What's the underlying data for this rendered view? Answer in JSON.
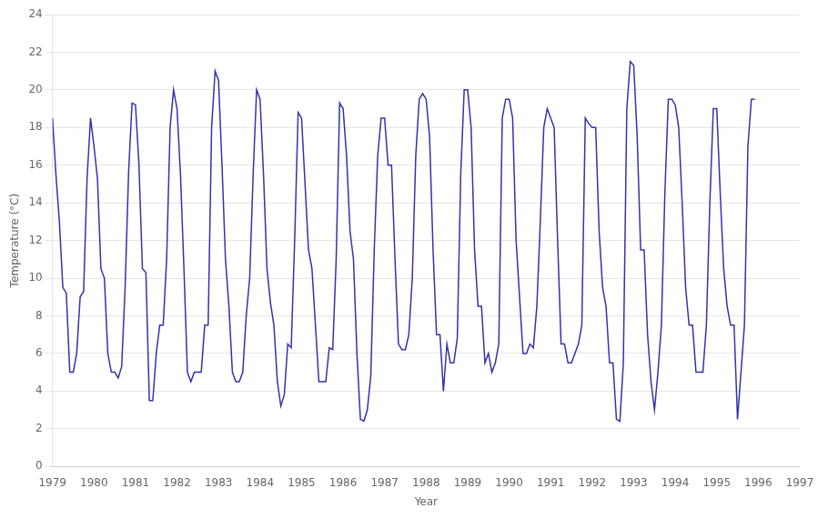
{
  "chart_data": {
    "type": "line",
    "xlabel": "Year",
    "ylabel": "Temperature (°C)",
    "xlim": [
      1979,
      1997
    ],
    "ylim": [
      0,
      24
    ],
    "xticks": [
      1979,
      1980,
      1981,
      1982,
      1983,
      1984,
      1985,
      1986,
      1987,
      1988,
      1989,
      1990,
      1991,
      1992,
      1993,
      1994,
      1995,
      1996,
      1997
    ],
    "yticks": [
      0,
      2,
      4,
      6,
      8,
      10,
      12,
      14,
      16,
      18,
      20,
      22,
      24
    ],
    "grid": "y",
    "color": "#3333aa",
    "x": [
      1979,
      1979.0833333333333,
      1979.1666666666667,
      1979.25,
      1979.3333333333333,
      1979.4166666666667,
      1979.5,
      1979.5833333333333,
      1979.6666666666667,
      1979.75,
      1979.8333333333333,
      1979.9166666666667,
      1980,
      1980.0833333333333,
      1980.1666666666667,
      1980.25,
      1980.3333333333333,
      1980.4166666666667,
      1980.5,
      1980.5833333333333,
      1980.6666666666667,
      1980.75,
      1980.8333333333333,
      1980.9166666666667,
      1981,
      1981.0833333333333,
      1981.1666666666667,
      1981.25,
      1981.3333333333333,
      1981.4166666666667,
      1981.5,
      1981.5833333333333,
      1981.6666666666667,
      1981.75,
      1981.8333333333333,
      1981.9166666666667,
      1982,
      1982.0833333333333,
      1982.1666666666667,
      1982.25,
      1982.3333333333333,
      1982.4166666666667,
      1982.5,
      1982.5833333333333,
      1982.6666666666667,
      1982.75,
      1982.8333333333333,
      1982.9166666666667,
      1983,
      1983.0833333333333,
      1983.1666666666667,
      1983.25,
      1983.3333333333333,
      1983.4166666666667,
      1983.5,
      1983.5833333333333,
      1983.6666666666667,
      1983.75,
      1983.8333333333333,
      1983.9166666666667,
      1984,
      1984.0833333333333,
      1984.1666666666667,
      1984.25,
      1984.3333333333333,
      1984.4166666666667,
      1984.5,
      1984.5833333333333,
      1984.6666666666667,
      1984.75,
      1984.8333333333333,
      1984.9166666666667,
      1985,
      1985.0833333333333,
      1985.1666666666667,
      1985.25,
      1985.3333333333333,
      1985.4166666666667,
      1985.5,
      1985.5833333333333,
      1985.6666666666667,
      1985.75,
      1985.8333333333333,
      1985.9166666666667,
      1986,
      1986.0833333333333,
      1986.1666666666667,
      1986.25,
      1986.3333333333333,
      1986.4166666666667,
      1986.5,
      1986.5833333333333,
      1986.6666666666667,
      1986.75,
      1986.8333333333333,
      1986.9166666666667,
      1987,
      1987.0833333333333,
      1987.1666666666667,
      1987.25,
      1987.3333333333333,
      1987.4166666666667,
      1987.5,
      1987.5833333333333,
      1987.6666666666667,
      1987.75,
      1987.8333333333333,
      1987.9166666666667,
      1988,
      1988.0833333333333,
      1988.1666666666667,
      1988.25,
      1988.3333333333333,
      1988.4166666666667,
      1988.5,
      1988.5833333333333,
      1988.6666666666667,
      1988.75,
      1988.8333333333333,
      1988.9166666666667,
      1989,
      1989.0833333333333,
      1989.1666666666667,
      1989.25,
      1989.3333333333333,
      1989.4166666666667,
      1989.5,
      1989.5833333333333,
      1989.6666666666667,
      1989.75,
      1989.8333333333333,
      1989.9166666666667,
      1990,
      1990.0833333333333,
      1990.1666666666667,
      1990.25,
      1990.3333333333333,
      1990.4166666666667,
      1990.5,
      1990.5833333333333,
      1990.6666666666667,
      1990.75,
      1990.8333333333333,
      1990.9166666666667,
      1991,
      1991.0833333333333,
      1991.1666666666667,
      1991.25,
      1991.3333333333333,
      1991.4166666666667,
      1991.5,
      1991.5833333333333,
      1991.6666666666667,
      1991.75,
      1991.8333333333333,
      1991.9166666666667,
      1992,
      1992.0833333333333,
      1992.1666666666667,
      1992.25,
      1992.3333333333333,
      1992.4166666666667,
      1992.5,
      1992.5833333333333,
      1992.6666666666667,
      1992.75,
      1992.8333333333333,
      1992.9166666666667,
      1993,
      1993.0833333333333,
      1993.1666666666667,
      1993.25,
      1993.3333333333333,
      1993.4166666666667,
      1993.5,
      1993.5833333333333,
      1993.6666666666667,
      1993.75,
      1993.8333333333333,
      1993.9166666666667,
      1994,
      1994.0833333333333,
      1994.1666666666667,
      1994.25,
      1994.3333333333333,
      1994.4166666666667,
      1994.5,
      1994.5833333333333,
      1994.6666666666667,
      1994.75,
      1994.8333333333333,
      1994.9166666666667,
      1995,
      1995.0833333333333,
      1995.1666666666667,
      1995.25,
      1995.3333333333333,
      1995.4166666666667,
      1995.5,
      1995.5833333333333,
      1995.6666666666667,
      1995.75,
      1995.8333333333333,
      1995.9166666666667
    ],
    "values": [
      18.5,
      15.5,
      13.0,
      9.5,
      9.2,
      5.0,
      5.0,
      6.0,
      9.0,
      9.3,
      15.3,
      18.5,
      17.0,
      15.3,
      10.5,
      10.0,
      6.0,
      5.0,
      5.0,
      4.7,
      5.3,
      9.5,
      15.6,
      19.3,
      19.2,
      16.0,
      10.5,
      10.3,
      3.5,
      3.5,
      6.0,
      7.5,
      7.5,
      11.0,
      18.0,
      20.0,
      19.0,
      15.5,
      10.5,
      5.0,
      4.5,
      5.0,
      5.0,
      5.0,
      7.5,
      7.5,
      18.0,
      21.0,
      20.5,
      16.0,
      11.0,
      8.5,
      5.0,
      4.5,
      4.5,
      5.0,
      8.0,
      10.0,
      15.5,
      20.0,
      19.5,
      15.5,
      10.5,
      8.7,
      7.5,
      4.5,
      3.2,
      3.8,
      6.5,
      6.3,
      12.0,
      18.8,
      18.5,
      15.0,
      11.5,
      10.5,
      7.5,
      4.5,
      4.5,
      4.5,
      6.3,
      6.2,
      11.0,
      19.3,
      19.0,
      16.5,
      12.5,
      11.0,
      6.0,
      2.5,
      2.4,
      3.0,
      4.8,
      11.5,
      16.5,
      18.5,
      18.5,
      16.0,
      16.0,
      11.0,
      6.5,
      6.2,
      6.2,
      7.0,
      10.0,
      16.5,
      19.5,
      19.8,
      19.5,
      17.5,
      11.5,
      7.0,
      7.0,
      4.0,
      6.5,
      5.5,
      5.5,
      6.8,
      15.5,
      20.0,
      20.0,
      18.0,
      11.5,
      8.5,
      8.5,
      5.5,
      6.0,
      5.0,
      5.5,
      6.5,
      18.5,
      19.5,
      19.5,
      18.5,
      12.0,
      9.0,
      6.0,
      6.0,
      6.5,
      6.3,
      8.5,
      13.0,
      18.0,
      19.0,
      18.5,
      18.0,
      12.0,
      6.5,
      6.5,
      5.5,
      5.5,
      6.0,
      6.5,
      7.5,
      18.5,
      18.2,
      18.0,
      18.0,
      12.5,
      9.5,
      8.5,
      5.5,
      5.5,
      2.5,
      2.4,
      5.5,
      19.0,
      21.5,
      21.3,
      17.5,
      11.5,
      11.5,
      7.0,
      4.5,
      3.0,
      5.0,
      7.5,
      14.5,
      19.5,
      19.5,
      19.2,
      18.0,
      14.0,
      9.5,
      7.5,
      7.5,
      5.0,
      5.0,
      5.0,
      7.5,
      14.0,
      19.0,
      19.0,
      14.5,
      10.5,
      8.5,
      7.5,
      7.5,
      2.5,
      5.0,
      7.5,
      17.0,
      19.5,
      19.5
    ]
  }
}
